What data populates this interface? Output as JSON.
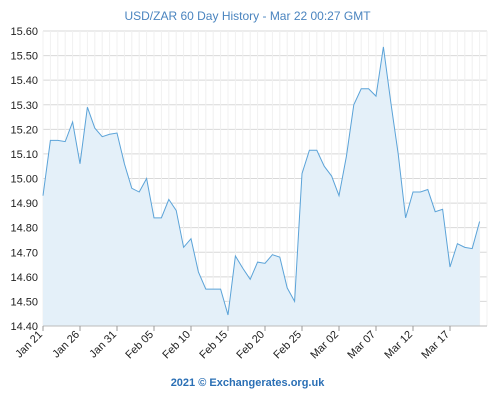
{
  "chart_data": {
    "type": "area",
    "title": "USD/ZAR 60 Day History - Mar 22 00:27 GMT",
    "footer": "2021 © Exchangerates.org.uk",
    "xlabel": "",
    "ylabel": "",
    "ylim": [
      14.4,
      15.6
    ],
    "yticks": [
      "14.40",
      "14.50",
      "14.60",
      "14.70",
      "14.80",
      "14.90",
      "15.00",
      "15.10",
      "15.20",
      "15.30",
      "15.40",
      "15.50",
      "15.60"
    ],
    "xticks": [
      {
        "label": "Jan 21",
        "index": 0
      },
      {
        "label": "Jan 26",
        "index": 5
      },
      {
        "label": "Jan 31",
        "index": 10
      },
      {
        "label": "Feb 05",
        "index": 15
      },
      {
        "label": "Feb 10",
        "index": 20
      },
      {
        "label": "Feb 15",
        "index": 25
      },
      {
        "label": "Feb 20",
        "index": 30
      },
      {
        "label": "Feb 25",
        "index": 35
      },
      {
        "label": "Mar 02",
        "index": 40
      },
      {
        "label": "Mar 07",
        "index": 45
      },
      {
        "label": "Mar 12",
        "index": 50
      },
      {
        "label": "Mar 17",
        "index": 55
      }
    ],
    "x_count": 61,
    "values": [
      14.93,
      15.155,
      15.155,
      15.15,
      15.23,
      15.06,
      15.29,
      15.205,
      15.17,
      15.18,
      15.185,
      15.06,
      14.96,
      14.945,
      15.0,
      14.84,
      14.84,
      14.915,
      14.87,
      14.72,
      14.755,
      14.62,
      14.55,
      14.55,
      14.55,
      14.445,
      14.685,
      14.635,
      14.59,
      14.66,
      14.655,
      14.69,
      14.68,
      14.555,
      14.5,
      15.02,
      15.115,
      15.115,
      15.05,
      15.01,
      14.93,
      15.09,
      15.3,
      15.365,
      15.365,
      15.335,
      15.535,
      15.31,
      15.1,
      14.84,
      14.945,
      14.945,
      14.955,
      14.865,
      14.875,
      14.64,
      14.735,
      14.72,
      14.715,
      14.825
    ],
    "grid": true,
    "colors": {
      "line": "#5ba3d8",
      "fill": "#e4f0f9",
      "grid": "#d8d8d8",
      "title": "#4a84bf",
      "footer": "#2a6fb5"
    }
  }
}
